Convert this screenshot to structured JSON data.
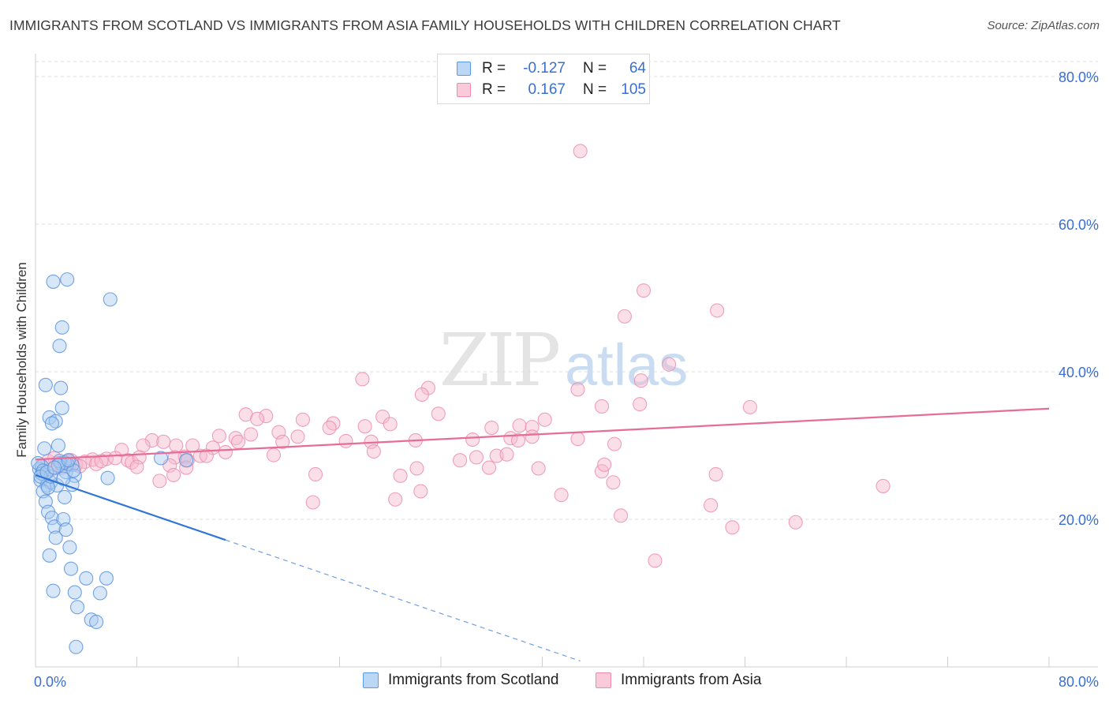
{
  "header": {
    "title": "IMMIGRANTS FROM SCOTLAND VS IMMIGRANTS FROM ASIA FAMILY HOUSEHOLDS WITH CHILDREN CORRELATION CHART",
    "source": "Source: ZipAtlas.com"
  },
  "watermark": {
    "zip": "ZIP",
    "atlas": "atlas"
  },
  "legend": {
    "rows": [
      {
        "r_label": "R =",
        "r_value": "-0.127",
        "n_label": "N =",
        "n_value": "64",
        "color": "#5b9be6"
      },
      {
        "r_label": "R =",
        "r_value": "0.167",
        "n_label": "N =",
        "n_value": "105",
        "color": "#f08aaa"
      }
    ]
  },
  "bottom_legend": {
    "items": [
      {
        "label": "Immigrants from Scotland",
        "color": "#5b9be6"
      },
      {
        "label": "Immigrants from Asia",
        "color": "#f08aaa"
      }
    ]
  },
  "chart_data": {
    "type": "scatter",
    "title": "IMMIGRANTS FROM SCOTLAND VS IMMIGRANTS FROM ASIA FAMILY HOUSEHOLDS WITH CHILDREN CORRELATION CHART",
    "xlabel": "",
    "ylabel": "Family Households with Children",
    "xlim": [
      0,
      80
    ],
    "ylim": [
      0,
      82
    ],
    "x_tick_labels": [
      "0.0%",
      "80.0%"
    ],
    "y_ticks": [
      20,
      40,
      60,
      80
    ],
    "y_tick_labels": [
      "20.0%",
      "40.0%",
      "60.0%",
      "80.0%"
    ],
    "grid": true,
    "series": [
      {
        "name": "Immigrants from Scotland",
        "color": "#5b9be6",
        "R": -0.127,
        "N": 64,
        "trend": {
          "x0": 0,
          "y0": 26.0,
          "x1": 15.0,
          "y1": 17.2,
          "dashed_to_x": 43.0,
          "dashed_to_y": 0.8
        },
        "points": [
          [
            0.3,
            26.8
          ],
          [
            0.5,
            27.2
          ],
          [
            0.7,
            26.0
          ],
          [
            0.4,
            25.3
          ],
          [
            0.9,
            24.6
          ],
          [
            0.2,
            27.6
          ],
          [
            1.2,
            25.0
          ],
          [
            0.6,
            23.8
          ],
          [
            0.8,
            22.4
          ],
          [
            1.0,
            21.0
          ],
          [
            1.3,
            20.2
          ],
          [
            1.5,
            19.0
          ],
          [
            1.6,
            17.5
          ],
          [
            2.2,
            20.0
          ],
          [
            2.4,
            18.6
          ],
          [
            1.1,
            15.1
          ],
          [
            2.7,
            16.2
          ],
          [
            2.8,
            13.3
          ],
          [
            4.0,
            12.0
          ],
          [
            5.6,
            12.0
          ],
          [
            1.4,
            10.3
          ],
          [
            3.1,
            10.1
          ],
          [
            5.1,
            10.0
          ],
          [
            3.3,
            8.1
          ],
          [
            4.4,
            6.4
          ],
          [
            4.8,
            6.1
          ],
          [
            3.2,
            2.7
          ],
          [
            2.0,
            27.6
          ],
          [
            2.9,
            27.4
          ],
          [
            2.4,
            26.4
          ],
          [
            3.1,
            25.9
          ],
          [
            5.7,
            25.6
          ],
          [
            1.7,
            24.6
          ],
          [
            2.9,
            24.7
          ],
          [
            2.3,
            23.0
          ],
          [
            1.4,
            52.2
          ],
          [
            2.5,
            52.5
          ],
          [
            5.9,
            49.8
          ],
          [
            2.1,
            46.0
          ],
          [
            1.9,
            43.5
          ],
          [
            0.8,
            38.2
          ],
          [
            2.0,
            37.8
          ],
          [
            2.1,
            35.1
          ],
          [
            1.1,
            33.8
          ],
          [
            1.6,
            33.3
          ],
          [
            0.7,
            29.6
          ],
          [
            1.8,
            30.0
          ],
          [
            1.3,
            33.0
          ],
          [
            9.9,
            28.3
          ],
          [
            11.9,
            28.0
          ],
          [
            2.5,
            27.5
          ],
          [
            2.3,
            27.7
          ],
          [
            1.9,
            27.9
          ],
          [
            3.0,
            26.6
          ],
          [
            0.5,
            26.2
          ],
          [
            1.0,
            24.3
          ],
          [
            0.6,
            26.6
          ],
          [
            1.2,
            25.8
          ],
          [
            1.8,
            27.3
          ],
          [
            2.6,
            28.0
          ],
          [
            0.4,
            25.8
          ],
          [
            0.9,
            26.4
          ],
          [
            1.5,
            27.0
          ],
          [
            2.2,
            25.5
          ]
        ]
      },
      {
        "name": "Immigrants from Asia",
        "color": "#f08aaa",
        "R": 0.167,
        "N": 105,
        "trend": {
          "x0": 0,
          "y0": 28.1,
          "x1": 80,
          "y1": 35.0
        },
        "points": [
          [
            43.0,
            69.9
          ],
          [
            48.0,
            51.0
          ],
          [
            46.5,
            47.5
          ],
          [
            53.8,
            48.3
          ],
          [
            50.0,
            41.0
          ],
          [
            47.8,
            38.8
          ],
          [
            42.8,
            37.6
          ],
          [
            25.8,
            39.0
          ],
          [
            31.0,
            37.8
          ],
          [
            30.5,
            36.9
          ],
          [
            44.7,
            35.3
          ],
          [
            47.7,
            35.6
          ],
          [
            56.4,
            35.2
          ],
          [
            31.8,
            34.3
          ],
          [
            16.6,
            34.2
          ],
          [
            18.2,
            34.0
          ],
          [
            17.5,
            33.6
          ],
          [
            27.4,
            33.9
          ],
          [
            21.1,
            33.5
          ],
          [
            23.5,
            33.0
          ],
          [
            26.0,
            32.6
          ],
          [
            28.0,
            32.9
          ],
          [
            36.0,
            32.4
          ],
          [
            38.2,
            32.7
          ],
          [
            39.2,
            32.5
          ],
          [
            40.2,
            33.5
          ],
          [
            23.2,
            32.4
          ],
          [
            19.2,
            31.8
          ],
          [
            17.0,
            31.5
          ],
          [
            15.8,
            31.0
          ],
          [
            9.2,
            30.7
          ],
          [
            10.1,
            30.5
          ],
          [
            8.5,
            30.0
          ],
          [
            11.1,
            30.0
          ],
          [
            14.5,
            31.3
          ],
          [
            16.0,
            30.5
          ],
          [
            19.5,
            30.5
          ],
          [
            20.7,
            31.2
          ],
          [
            24.5,
            30.6
          ],
          [
            26.5,
            30.5
          ],
          [
            30.0,
            30.7
          ],
          [
            34.5,
            30.8
          ],
          [
            37.5,
            31.0
          ],
          [
            39.2,
            31.2
          ],
          [
            42.8,
            30.9
          ],
          [
            45.7,
            30.2
          ],
          [
            34.8,
            28.4
          ],
          [
            36.4,
            28.6
          ],
          [
            37.2,
            28.8
          ],
          [
            38.1,
            30.7
          ],
          [
            6.8,
            29.4
          ],
          [
            7.3,
            28.0
          ],
          [
            13.0,
            28.6
          ],
          [
            14.0,
            29.7
          ],
          [
            15.0,
            29.1
          ],
          [
            18.8,
            28.7
          ],
          [
            26.7,
            29.2
          ],
          [
            12.4,
            30.0
          ],
          [
            11.8,
            28.5
          ],
          [
            30.1,
            26.9
          ],
          [
            35.8,
            27.0
          ],
          [
            39.7,
            26.9
          ],
          [
            44.7,
            26.5
          ],
          [
            44.9,
            27.4
          ],
          [
            30.4,
            23.8
          ],
          [
            45.6,
            25.0
          ],
          [
            33.5,
            28.0
          ],
          [
            28.8,
            25.9
          ],
          [
            22.1,
            26.1
          ],
          [
            3.2,
            27.4
          ],
          [
            4.5,
            28.1
          ],
          [
            5.6,
            28.2
          ],
          [
            6.3,
            28.3
          ],
          [
            7.6,
            27.7
          ],
          [
            8.2,
            28.4
          ],
          [
            2.5,
            27.9
          ],
          [
            1.7,
            27.6
          ],
          [
            1.0,
            27.9
          ],
          [
            1.5,
            28.3
          ],
          [
            2.1,
            27.0
          ],
          [
            3.9,
            27.8
          ],
          [
            4.8,
            27.5
          ],
          [
            5.2,
            27.9
          ],
          [
            8.0,
            27.1
          ],
          [
            11.0,
            28.4
          ],
          [
            12.0,
            28.0
          ],
          [
            13.5,
            28.6
          ],
          [
            10.6,
            27.3
          ],
          [
            11.9,
            27.0
          ],
          [
            9.8,
            25.2
          ],
          [
            10.9,
            26.0
          ],
          [
            21.9,
            22.3
          ],
          [
            28.4,
            22.7
          ],
          [
            41.5,
            23.3
          ],
          [
            46.2,
            20.5
          ],
          [
            53.3,
            21.9
          ],
          [
            53.7,
            26.1
          ],
          [
            55.0,
            18.9
          ],
          [
            60.0,
            19.6
          ],
          [
            48.9,
            14.4
          ],
          [
            66.9,
            24.5
          ],
          [
            0.5,
            27.1
          ],
          [
            1.2,
            26.7
          ],
          [
            2.8,
            28.0
          ],
          [
            3.5,
            27.2
          ]
        ]
      }
    ]
  }
}
